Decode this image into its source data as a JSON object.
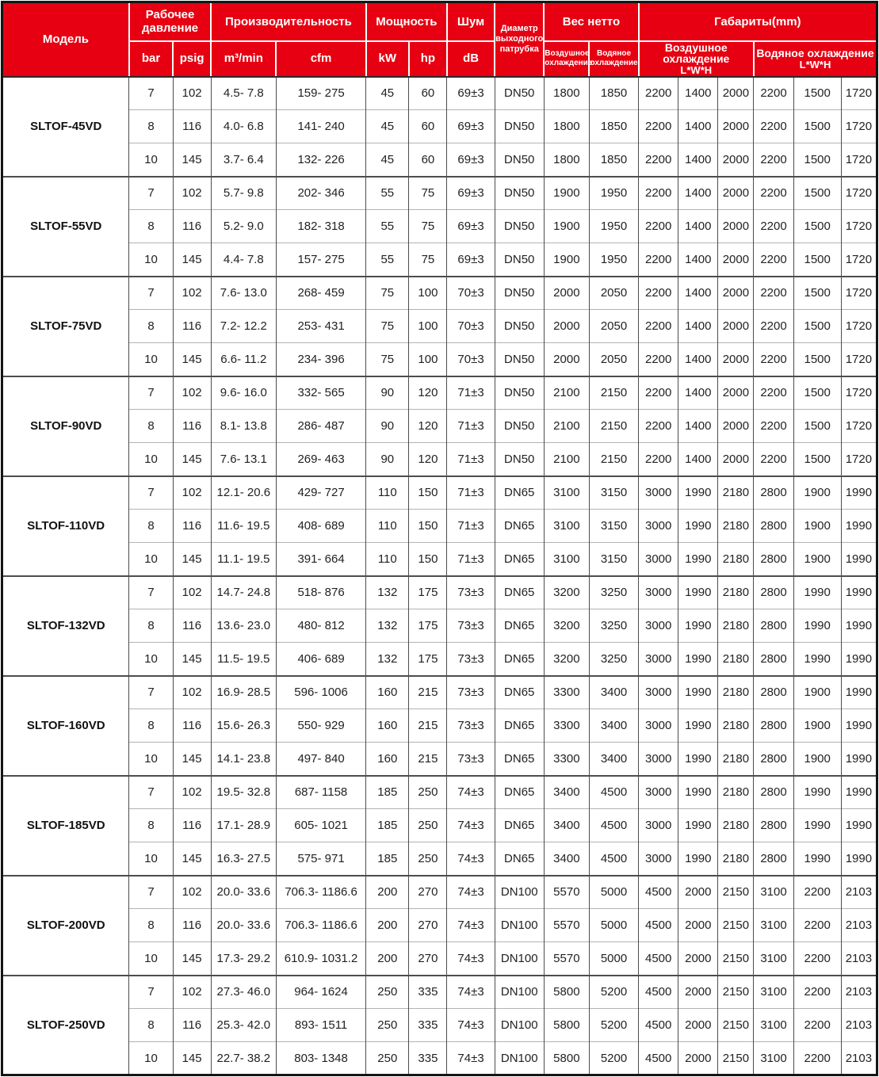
{
  "table": {
    "header": {
      "model": "Модель",
      "working_pressure": "Рабочее давление",
      "bar": "bar",
      "psig": "psig",
      "capacity": "Производительность",
      "m3min": "m³/min",
      "cfm": "cfm",
      "power": "Мощность",
      "kw": "kW",
      "hp": "hp",
      "noise": "Шум",
      "db": "dB",
      "outlet_diameter": "Диаметр выходного патрубка",
      "net_weight": "Вес нетто",
      "air_cooling": "Воздушное охлаждение",
      "water_cooling": "Водяное охлаждение",
      "dimensions": "Габариты(mm)",
      "lwh": "L*W*H"
    },
    "models": [
      {
        "name": "SLTOF-45VD",
        "rows": [
          [
            "7",
            "102",
            "4.5- 7.8",
            "159- 275",
            "45",
            "60",
            "69±3",
            "DN50",
            "1800",
            "1850",
            "2200",
            "1400",
            "2000",
            "2200",
            "1500",
            "1720"
          ],
          [
            "8",
            "116",
            "4.0- 6.8",
            "141- 240",
            "45",
            "60",
            "69±3",
            "DN50",
            "1800",
            "1850",
            "2200",
            "1400",
            "2000",
            "2200",
            "1500",
            "1720"
          ],
          [
            "10",
            "145",
            "3.7- 6.4",
            "132- 226",
            "45",
            "60",
            "69±3",
            "DN50",
            "1800",
            "1850",
            "2200",
            "1400",
            "2000",
            "2200",
            "1500",
            "1720"
          ]
        ]
      },
      {
        "name": "SLTOF-55VD",
        "rows": [
          [
            "7",
            "102",
            "5.7- 9.8",
            "202- 346",
            "55",
            "75",
            "69±3",
            "DN50",
            "1900",
            "1950",
            "2200",
            "1400",
            "2000",
            "2200",
            "1500",
            "1720"
          ],
          [
            "8",
            "116",
            "5.2- 9.0",
            "182- 318",
            "55",
            "75",
            "69±3",
            "DN50",
            "1900",
            "1950",
            "2200",
            "1400",
            "2000",
            "2200",
            "1500",
            "1720"
          ],
          [
            "10",
            "145",
            "4.4- 7.8",
            "157- 275",
            "55",
            "75",
            "69±3",
            "DN50",
            "1900",
            "1950",
            "2200",
            "1400",
            "2000",
            "2200",
            "1500",
            "1720"
          ]
        ]
      },
      {
        "name": "SLTOF-75VD",
        "rows": [
          [
            "7",
            "102",
            "7.6- 13.0",
            "268- 459",
            "75",
            "100",
            "70±3",
            "DN50",
            "2000",
            "2050",
            "2200",
            "1400",
            "2000",
            "2200",
            "1500",
            "1720"
          ],
          [
            "8",
            "116",
            "7.2- 12.2",
            "253- 431",
            "75",
            "100",
            "70±3",
            "DN50",
            "2000",
            "2050",
            "2200",
            "1400",
            "2000",
            "2200",
            "1500",
            "1720"
          ],
          [
            "10",
            "145",
            "6.6- 11.2",
            "234- 396",
            "75",
            "100",
            "70±3",
            "DN50",
            "2000",
            "2050",
            "2200",
            "1400",
            "2000",
            "2200",
            "1500",
            "1720"
          ]
        ]
      },
      {
        "name": "SLTOF-90VD",
        "rows": [
          [
            "7",
            "102",
            "9.6- 16.0",
            "332- 565",
            "90",
            "120",
            "71±3",
            "DN50",
            "2100",
            "2150",
            "2200",
            "1400",
            "2000",
            "2200",
            "1500",
            "1720"
          ],
          [
            "8",
            "116",
            "8.1- 13.8",
            "286- 487",
            "90",
            "120",
            "71±3",
            "DN50",
            "2100",
            "2150",
            "2200",
            "1400",
            "2000",
            "2200",
            "1500",
            "1720"
          ],
          [
            "10",
            "145",
            "7.6- 13.1",
            "269- 463",
            "90",
            "120",
            "71±3",
            "DN50",
            "2100",
            "2150",
            "2200",
            "1400",
            "2000",
            "2200",
            "1500",
            "1720"
          ]
        ]
      },
      {
        "name": "SLTOF-110VD",
        "rows": [
          [
            "7",
            "102",
            "12.1- 20.6",
            "429- 727",
            "110",
            "150",
            "71±3",
            "DN65",
            "3100",
            "3150",
            "3000",
            "1990",
            "2180",
            "2800",
            "1900",
            "1990"
          ],
          [
            "8",
            "116",
            "11.6- 19.5",
            "408- 689",
            "110",
            "150",
            "71±3",
            "DN65",
            "3100",
            "3150",
            "3000",
            "1990",
            "2180",
            "2800",
            "1900",
            "1990"
          ],
          [
            "10",
            "145",
            "11.1- 19.5",
            "391- 664",
            "110",
            "150",
            "71±3",
            "DN65",
            "3100",
            "3150",
            "3000",
            "1990",
            "2180",
            "2800",
            "1900",
            "1990"
          ]
        ]
      },
      {
        "name": "SLTOF-132VD",
        "rows": [
          [
            "7",
            "102",
            "14.7- 24.8",
            "518- 876",
            "132",
            "175",
            "73±3",
            "DN65",
            "3200",
            "3250",
            "3000",
            "1990",
            "2180",
            "2800",
            "1990",
            "1990"
          ],
          [
            "8",
            "116",
            "13.6- 23.0",
            "480- 812",
            "132",
            "175",
            "73±3",
            "DN65",
            "3200",
            "3250",
            "3000",
            "1990",
            "2180",
            "2800",
            "1990",
            "1990"
          ],
          [
            "10",
            "145",
            "11.5- 19.5",
            "406- 689",
            "132",
            "175",
            "73±3",
            "DN65",
            "3200",
            "3250",
            "3000",
            "1990",
            "2180",
            "2800",
            "1990",
            "1990"
          ]
        ]
      },
      {
        "name": "SLTOF-160VD",
        "rows": [
          [
            "7",
            "102",
            "16.9- 28.5",
            "596- 1006",
            "160",
            "215",
            "73±3",
            "DN65",
            "3300",
            "3400",
            "3000",
            "1990",
            "2180",
            "2800",
            "1900",
            "1990"
          ],
          [
            "8",
            "116",
            "15.6- 26.3",
            "550- 929",
            "160",
            "215",
            "73±3",
            "DN65",
            "3300",
            "3400",
            "3000",
            "1990",
            "2180",
            "2800",
            "1900",
            "1990"
          ],
          [
            "10",
            "145",
            "14.1- 23.8",
            "497- 840",
            "160",
            "215",
            "73±3",
            "DN65",
            "3300",
            "3400",
            "3000",
            "1990",
            "2180",
            "2800",
            "1900",
            "1990"
          ]
        ]
      },
      {
        "name": "SLTOF-185VD",
        "rows": [
          [
            "7",
            "102",
            "19.5- 32.8",
            "687- 1158",
            "185",
            "250",
            "74±3",
            "DN65",
            "3400",
            "4500",
            "3000",
            "1990",
            "2180",
            "2800",
            "1990",
            "1990"
          ],
          [
            "8",
            "116",
            "17.1- 28.9",
            "605- 1021",
            "185",
            "250",
            "74±3",
            "DN65",
            "3400",
            "4500",
            "3000",
            "1990",
            "2180",
            "2800",
            "1990",
            "1990"
          ],
          [
            "10",
            "145",
            "16.3- 27.5",
            "575- 971",
            "185",
            "250",
            "74±3",
            "DN65",
            "3400",
            "4500",
            "3000",
            "1990",
            "2180",
            "2800",
            "1990",
            "1990"
          ]
        ]
      },
      {
        "name": "SLTOF-200VD",
        "rows": [
          [
            "7",
            "102",
            "20.0- 33.6",
            "706.3- 1186.6",
            "200",
            "270",
            "74±3",
            "DN100",
            "5570",
            "5000",
            "4500",
            "2000",
            "2150",
            "3100",
            "2200",
            "2103"
          ],
          [
            "8",
            "116",
            "20.0- 33.6",
            "706.3- 1186.6",
            "200",
            "270",
            "74±3",
            "DN100",
            "5570",
            "5000",
            "4500",
            "2000",
            "2150",
            "3100",
            "2200",
            "2103"
          ],
          [
            "10",
            "145",
            "17.3- 29.2",
            "610.9- 1031.2",
            "200",
            "270",
            "74±3",
            "DN100",
            "5570",
            "5000",
            "4500",
            "2000",
            "2150",
            "3100",
            "2200",
            "2103"
          ]
        ]
      },
      {
        "name": "SLTOF-250VD",
        "rows": [
          [
            "7",
            "102",
            "27.3- 46.0",
            "964- 1624",
            "250",
            "335",
            "74±3",
            "DN100",
            "5800",
            "5200",
            "4500",
            "2000",
            "2150",
            "3100",
            "2200",
            "2103"
          ],
          [
            "8",
            "116",
            "25.3- 42.0",
            "893- 1511",
            "250",
            "335",
            "74±3",
            "DN100",
            "5800",
            "5200",
            "4500",
            "2000",
            "2150",
            "3100",
            "2200",
            "2103"
          ],
          [
            "10",
            "145",
            "22.7- 38.2",
            "803- 1348",
            "250",
            "335",
            "74±3",
            "DN100",
            "5800",
            "5200",
            "4500",
            "2000",
            "2150",
            "3100",
            "2200",
            "2103"
          ]
        ]
      }
    ],
    "colors": {
      "header_bg": "#e60012",
      "header_text": "#ffffff",
      "body_text": "#222222"
    }
  }
}
